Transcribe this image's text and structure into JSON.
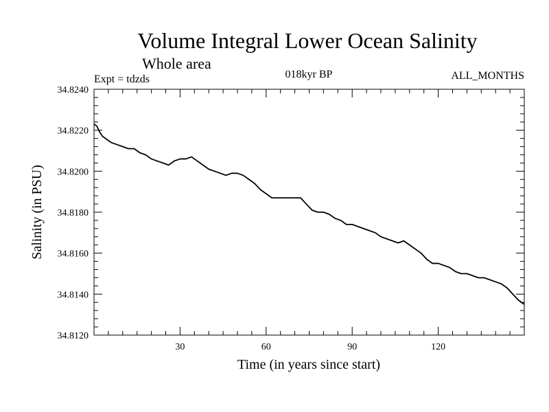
{
  "chart_data": {
    "type": "line",
    "title": "Volume Integral Lower Ocean Salinity",
    "subtitle": "Whole area",
    "experiment": "Expt = tdzds",
    "period": "018kyr BP",
    "months": "ALL_MONTHS",
    "xlabel": "Time (in years since start)",
    "ylabel": "Salinity (in PSU)",
    "xlim": [
      0,
      150
    ],
    "ylim": [
      34.812,
      34.824
    ],
    "xticks": [
      30,
      60,
      90,
      120
    ],
    "xtick_labels": [
      "30",
      "60",
      "90",
      "120"
    ],
    "yticks": [
      34.812,
      34.814,
      34.816,
      34.818,
      34.82,
      34.822,
      34.824
    ],
    "ytick_labels": [
      "34.8120",
      "34.8140",
      "34.8160",
      "34.8180",
      "34.8200",
      "34.8220",
      "34.8240"
    ],
    "series": [
      {
        "name": "Salinity",
        "x": [
          0,
          1,
          2,
          3,
          4,
          5,
          6,
          8,
          10,
          12,
          14,
          16,
          18,
          20,
          22,
          24,
          26,
          28,
          30,
          32,
          34,
          36,
          38,
          40,
          42,
          44,
          46,
          48,
          50,
          52,
          54,
          56,
          58,
          60,
          62,
          64,
          66,
          68,
          70,
          72,
          74,
          76,
          78,
          80,
          82,
          84,
          86,
          88,
          90,
          92,
          94,
          96,
          98,
          100,
          102,
          104,
          106,
          108,
          110,
          112,
          114,
          116,
          118,
          120,
          122,
          124,
          126,
          128,
          130,
          132,
          134,
          136,
          138,
          140,
          142,
          144,
          146,
          148,
          150
        ],
        "values": [
          34.8223,
          34.8222,
          34.8219,
          34.8217,
          34.8216,
          34.8215,
          34.8214,
          34.8213,
          34.8212,
          34.8211,
          34.8211,
          34.8209,
          34.8208,
          34.8206,
          34.8205,
          34.8204,
          34.8203,
          34.8205,
          34.8206,
          34.8206,
          34.8207,
          34.8205,
          34.8203,
          34.8201,
          34.82,
          34.8199,
          34.8198,
          34.8199,
          34.8199,
          34.8198,
          34.8196,
          34.8194,
          34.8191,
          34.8189,
          34.8187,
          34.8187,
          34.8187,
          34.8187,
          34.8187,
          34.8187,
          34.8184,
          34.8181,
          34.818,
          34.818,
          34.8179,
          34.8177,
          34.8176,
          34.8174,
          34.8174,
          34.8173,
          34.8172,
          34.8171,
          34.817,
          34.8168,
          34.8167,
          34.8166,
          34.8165,
          34.8166,
          34.8164,
          34.8162,
          34.816,
          34.8157,
          34.8155,
          34.8155,
          34.8154,
          34.8153,
          34.8151,
          34.815,
          34.815,
          34.8149,
          34.8148,
          34.8148,
          34.8147,
          34.8146,
          34.8145,
          34.8143,
          34.814,
          34.8137,
          34.8135
        ]
      }
    ]
  }
}
